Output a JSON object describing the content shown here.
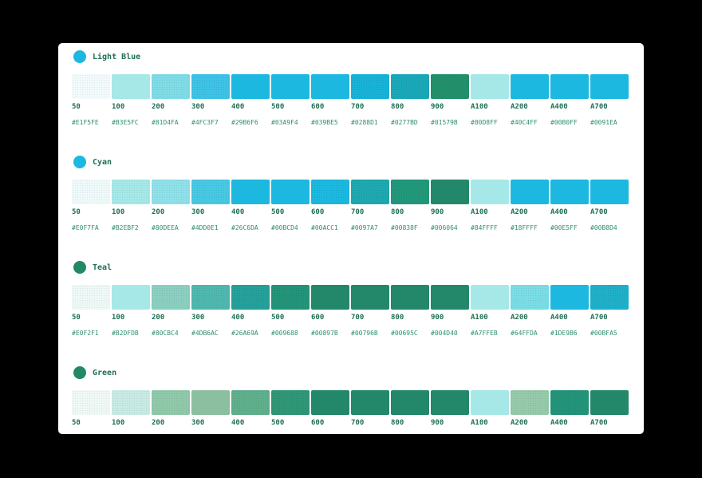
{
  "palettes": [
    {
      "name": "Light Blue",
      "dot_color": "#1CB8E0",
      "swatches": [
        {
          "label": "50",
          "hex": "#E1F5FE",
          "fill": "#F2FAFC",
          "light": true
        },
        {
          "label": "100",
          "hex": "#B3E5FC",
          "fill": "#A6E8E8",
          "light": false
        },
        {
          "label": "200",
          "hex": "#81D4FA",
          "fill": "#7FDCE6",
          "light": true
        },
        {
          "label": "300",
          "hex": "#4FC3F7",
          "fill": "#3EC2E6",
          "light": true
        },
        {
          "label": "400",
          "hex": "#29B6F6",
          "fill": "#1CB8E0",
          "light": false
        },
        {
          "label": "500",
          "hex": "#03A9F4",
          "fill": "#1CB8E0",
          "light": false
        },
        {
          "label": "600",
          "hex": "#039BE5",
          "fill": "#1CB8E0",
          "light": false
        },
        {
          "label": "700",
          "hex": "#0288D1",
          "fill": "#18B2D8",
          "light": true
        },
        {
          "label": "800",
          "hex": "#0277BD",
          "fill": "#1AA8B8",
          "light": true
        },
        {
          "label": "900",
          "hex": "#01579B",
          "fill": "#23906C",
          "light": true
        },
        {
          "label": "A100",
          "hex": "#80D8FF",
          "fill": "#A6E8E8",
          "light": false
        },
        {
          "label": "A200",
          "hex": "#40C4FF",
          "fill": "#1CB8E0",
          "light": false
        },
        {
          "label": "A400",
          "hex": "#00B0FF",
          "fill": "#1CB8E0",
          "light": false
        },
        {
          "label": "A700",
          "hex": "#0091EA",
          "fill": "#1CB8E0",
          "light": false
        }
      ]
    },
    {
      "name": "Cyan",
      "dot_color": "#1CB8E0",
      "swatches": [
        {
          "label": "50",
          "hex": "#E0F7FA",
          "fill": "#EEF9FA",
          "light": true
        },
        {
          "label": "100",
          "hex": "#B2EBF2",
          "fill": "#A6E8E8",
          "light": true
        },
        {
          "label": "200",
          "hex": "#80DEEA",
          "fill": "#8FE0E8",
          "light": true
        },
        {
          "label": "300",
          "hex": "#4DD0E1",
          "fill": "#48C8E2",
          "light": true
        },
        {
          "label": "400",
          "hex": "#26C6DA",
          "fill": "#1CB8E0",
          "light": false
        },
        {
          "label": "500",
          "hex": "#00BCD4",
          "fill": "#1CB8E0",
          "light": false
        },
        {
          "label": "600",
          "hex": "#00ACC1",
          "fill": "#1CB8E0",
          "light": true
        },
        {
          "label": "700",
          "hex": "#0097A7",
          "fill": "#1FA8B0",
          "light": true
        },
        {
          "label": "800",
          "hex": "#00838F",
          "fill": "#22987A",
          "light": true
        },
        {
          "label": "900",
          "hex": "#006064",
          "fill": "#23886A",
          "light": false
        },
        {
          "label": "A100",
          "hex": "#84FFFF",
          "fill": "#A6E8E8",
          "light": false
        },
        {
          "label": "A200",
          "hex": "#18FFFF",
          "fill": "#1CB8E0",
          "light": false
        },
        {
          "label": "A400",
          "hex": "#00E5FF",
          "fill": "#1CB8E0",
          "light": false
        },
        {
          "label": "A700",
          "hex": "#00B8D4",
          "fill": "#1CB8E0",
          "light": false
        }
      ]
    },
    {
      "name": "Teal",
      "dot_color": "#23886A",
      "swatches": [
        {
          "label": "50",
          "hex": "#E0F2F1",
          "fill": "#EEF8F6",
          "light": true
        },
        {
          "label": "100",
          "hex": "#B2DFDB",
          "fill": "#A6E8E8",
          "light": false
        },
        {
          "label": "200",
          "hex": "#80CBC4",
          "fill": "#8ACFC0",
          "light": true
        },
        {
          "label": "300",
          "hex": "#4DB6AC",
          "fill": "#4FB8AE",
          "light": true
        },
        {
          "label": "400",
          "hex": "#26A69A",
          "fill": "#25A09A",
          "light": true
        },
        {
          "label": "500",
          "hex": "#009688",
          "fill": "#239479",
          "light": true
        },
        {
          "label": "600",
          "hex": "#00897B",
          "fill": "#23886A",
          "light": false
        },
        {
          "label": "700",
          "hex": "#00796B",
          "fill": "#23886A",
          "light": false
        },
        {
          "label": "800",
          "hex": "#00695C",
          "fill": "#23886A",
          "light": false
        },
        {
          "label": "900",
          "hex": "#004D40",
          "fill": "#23886A",
          "light": false
        },
        {
          "label": "A100",
          "hex": "#A7FFEB",
          "fill": "#A6E8E8",
          "light": false
        },
        {
          "label": "A200",
          "hex": "#64FFDA",
          "fill": "#7ADCE6",
          "light": true
        },
        {
          "label": "A400",
          "hex": "#1DE9B6",
          "fill": "#1CB8E0",
          "light": false
        },
        {
          "label": "A700",
          "hex": "#00BFA5",
          "fill": "#1FB0C8",
          "light": true
        }
      ]
    },
    {
      "name": "Green",
      "dot_color": "#23886A",
      "swatches": [
        {
          "label": "50",
          "hex": "",
          "fill": "#F0F8F5",
          "light": true
        },
        {
          "label": "100",
          "hex": "",
          "fill": "#C8EAE4",
          "light": true
        },
        {
          "label": "200",
          "hex": "",
          "fill": "#90C8AA",
          "light": true
        },
        {
          "label": "300",
          "hex": "",
          "fill": "#8CBFA0",
          "light": false
        },
        {
          "label": "400",
          "hex": "",
          "fill": "#5FAF8C",
          "light": true
        },
        {
          "label": "500",
          "hex": "",
          "fill": "#2F9676",
          "light": true
        },
        {
          "label": "600",
          "hex": "",
          "fill": "#23886A",
          "light": false
        },
        {
          "label": "700",
          "hex": "",
          "fill": "#23886A",
          "light": false
        },
        {
          "label": "800",
          "hex": "",
          "fill": "#23886A",
          "light": false
        },
        {
          "label": "900",
          "hex": "",
          "fill": "#23886A",
          "light": false
        },
        {
          "label": "A100",
          "hex": "",
          "fill": "#A6E8E8",
          "light": false
        },
        {
          "label": "A200",
          "hex": "",
          "fill": "#96C9AA",
          "light": true
        },
        {
          "label": "A400",
          "hex": "",
          "fill": "#239479",
          "light": true
        },
        {
          "label": "A700",
          "hex": "",
          "fill": "#23886A",
          "light": false
        }
      ]
    }
  ]
}
